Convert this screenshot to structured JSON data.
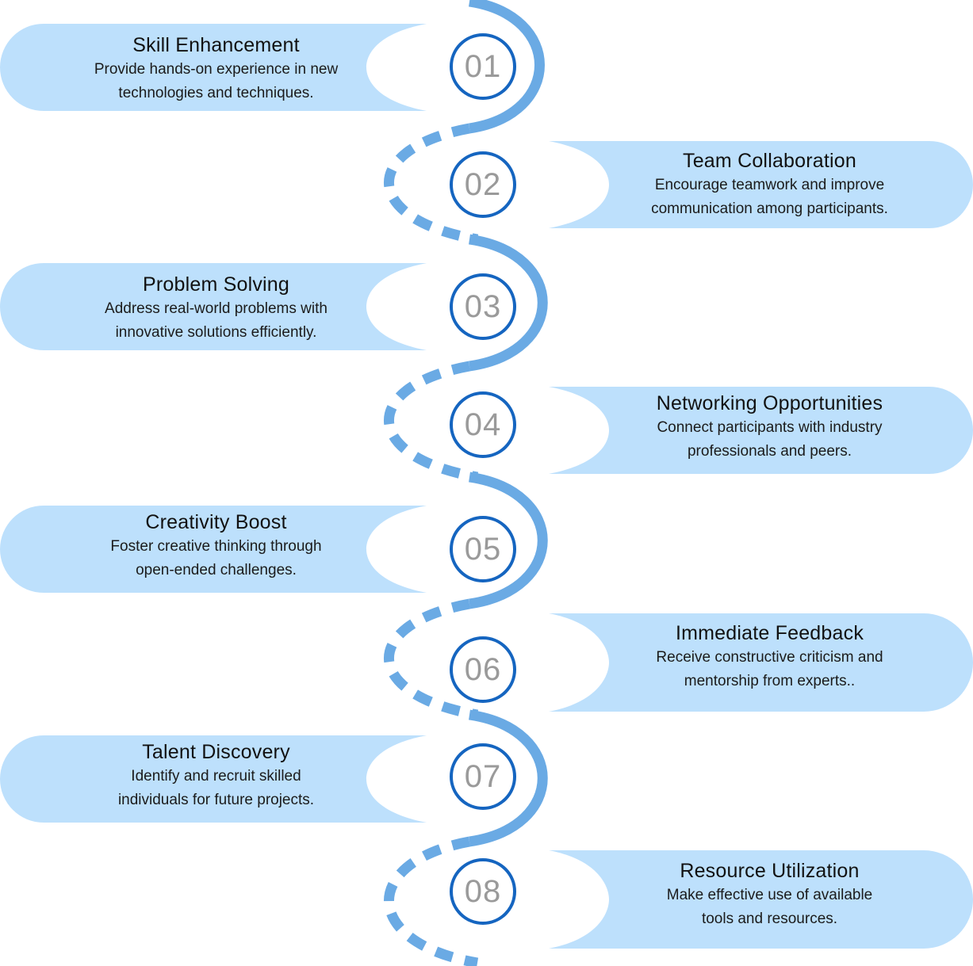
{
  "colors": {
    "card_fill": "#bde0fc",
    "path_blue": "#6aaae4",
    "path_accent": "#2f80d4",
    "circle_stroke": "#1565c0",
    "number_text": "#9a9a9a"
  },
  "steps": [
    {
      "number": "01",
      "side": "left",
      "title": "Skill Enhancement",
      "description_line1": "Provide hands-on experience in new",
      "description_line2": "technologies and techniques."
    },
    {
      "number": "02",
      "side": "right",
      "title": "Team Collaboration",
      "description_line1": "Encourage teamwork and improve",
      "description_line2": "communication among participants."
    },
    {
      "number": "03",
      "side": "left",
      "title": "Problem Solving",
      "description_line1": "Address real-world problems with",
      "description_line2": "innovative solutions efficiently."
    },
    {
      "number": "04",
      "side": "right",
      "title": "Networking Opportunities",
      "description_line1": "Connect participants with industry",
      "description_line2": "professionals and peers."
    },
    {
      "number": "05",
      "side": "left",
      "title": "Creativity Boost",
      "description_line1": "Foster creative thinking through",
      "description_line2": "open-ended challenges."
    },
    {
      "number": "06",
      "side": "right",
      "title": "Immediate Feedback",
      "description_line1": "Receive constructive criticism and",
      "description_line2": "mentorship from experts.."
    },
    {
      "number": "07",
      "side": "left",
      "title": "Talent Discovery",
      "description_line1": "Identify and recruit skilled",
      "description_line2": "individuals for future projects."
    },
    {
      "number": "08",
      "side": "right",
      "title": "Resource Utilization",
      "description_line1": "Make effective use of available",
      "description_line2": "tools and resources."
    }
  ]
}
